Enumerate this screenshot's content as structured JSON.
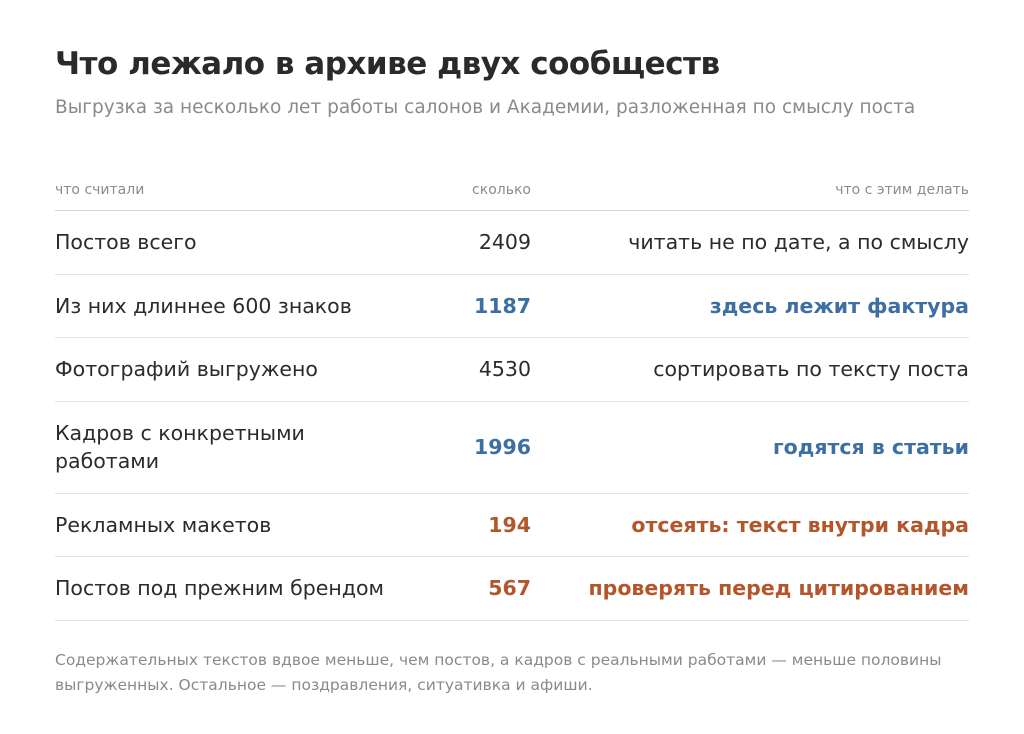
{
  "title": "Что лежало в архиве двух сообществ",
  "subtitle": "Выгрузка за несколько лет работы салонов и Академии, разложенная по смыслу поста",
  "table": {
    "headers": {
      "what": "что считали",
      "count": "сколько",
      "action": "что с этим делать"
    },
    "rows": [
      {
        "what": "Постов всего",
        "count": "2409",
        "action": "читать не по дате, а по смыслу",
        "accent": "none"
      },
      {
        "what": "Из них длиннее 600 знаков",
        "count": "1187",
        "action": "здесь лежит фактура",
        "accent": "blue"
      },
      {
        "what": "Фотографий выгружено",
        "count": "4530",
        "action": "сортировать по тексту поста",
        "accent": "none"
      },
      {
        "what": "Кадров с конкретными работами",
        "count": "1996",
        "action": "годятся в статьи",
        "accent": "blue"
      },
      {
        "what": "Рекламных макетов",
        "count": "194",
        "action": "отсеять: текст внутри кадра",
        "accent": "rust"
      },
      {
        "what": "Постов под прежним брендом",
        "count": "567",
        "action": "проверять перед цитированием",
        "accent": "rust"
      }
    ]
  },
  "colors": {
    "blue_accent": "#3d6fa3",
    "rust_accent": "#b3562b"
  },
  "note": "Содержательных текстов вдвое меньше, чем постов, а кадров с реальными работами — меньше половины выгруженных. Остальное — поздравления, ситуативка и афиши."
}
